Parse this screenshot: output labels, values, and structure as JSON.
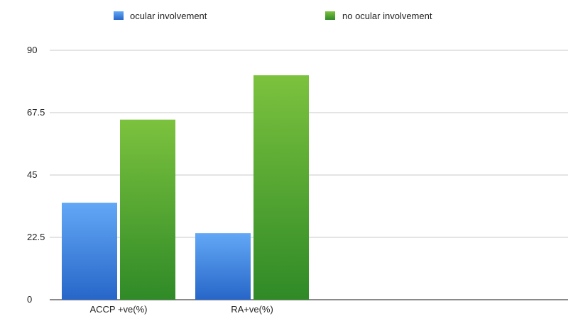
{
  "chart_data": {
    "type": "bar",
    "categories": [
      "ACCP +ve(%)",
      "RA+ve(%)"
    ],
    "series": [
      {
        "name": "ocular involvement",
        "values": [
          35,
          24
        ],
        "color": "#3a7fe0"
      },
      {
        "name": "no ocular involvement",
        "values": [
          65,
          81
        ],
        "color": "#3e9a2c"
      }
    ],
    "title": "",
    "xlabel": "",
    "ylabel": "",
    "ylim": [
      0,
      90
    ],
    "yticks": [
      "0",
      "22.5",
      "45",
      "67.5",
      "90"
    ],
    "grid": true,
    "legend_position": "top"
  }
}
